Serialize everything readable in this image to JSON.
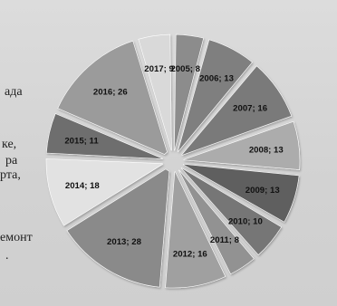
{
  "background_text": [
    "ада",
    "ке,",
    "ра",
    "рта,",
    "емонт",
    "."
  ],
  "chart_data": {
    "type": "pie",
    "style": "exploded",
    "title": "",
    "categories": [
      "2005",
      "2006",
      "2007",
      "2008",
      "2009",
      "2010",
      "2011",
      "2012",
      "2013",
      "2014",
      "2015",
      "2016",
      "2017"
    ],
    "values": [
      8,
      13,
      16,
      13,
      13,
      10,
      8,
      16,
      28,
      18,
      11,
      26,
      9
    ],
    "labels": [
      "2005; 8",
      "2006; 13",
      "2007; 16",
      "2008; 13",
      "2009; 13",
      "2010; 10",
      "2011; 8",
      "2012; 16",
      "2013; 28",
      "2014; 18",
      "2015; 11",
      "2016; 26",
      "2017; 9"
    ],
    "colors": [
      "#8c8c8c",
      "#7f7f7f",
      "#7a7a7a",
      "#acacac",
      "#5f5f5f",
      "#767676",
      "#929292",
      "#a0a0a0",
      "#8a8a8a",
      "#e2e2e2",
      "#6e6e6e",
      "#9b9b9b",
      "#d9d9d9"
    ],
    "label_colors": [
      "#111111",
      "#111111",
      "#111111",
      "#111111",
      "#111111",
      "#111111",
      "#111111",
      "#111111",
      "#111111",
      "#111111",
      "#111111",
      "#111111",
      "#111111"
    ]
  }
}
